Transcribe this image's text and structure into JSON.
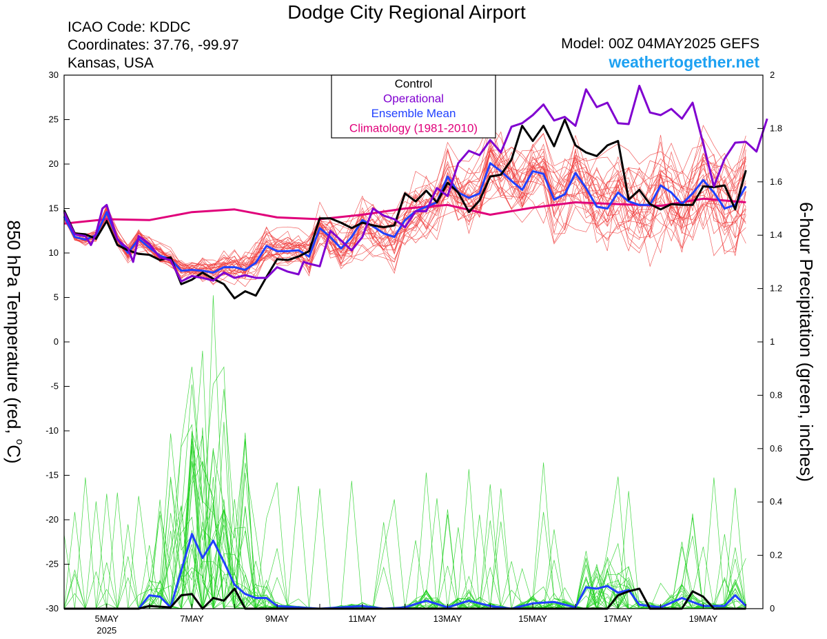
{
  "header": {
    "title": "Dodge City Regional Airport",
    "icao": "ICAO Code: KDDC",
    "coords": "Coordinates: 37.76, -99.97",
    "region": "Kansas, USA",
    "model": "Model: 00Z 04MAY2025 GEFS",
    "site": "weathertogether.net"
  },
  "chart_data": {
    "type": "line",
    "x_unit": "days since 00Z 04MAY2025 (6-hourly)",
    "xlim": [
      0,
      16
    ],
    "x_ticks": [
      {
        "x": 1,
        "label": "5MAY",
        "sub": "2025"
      },
      {
        "x": 3,
        "label": "7MAY"
      },
      {
        "x": 5,
        "label": "9MAY"
      },
      {
        "x": 7,
        "label": "11MAY"
      },
      {
        "x": 9,
        "label": "13MAY"
      },
      {
        "x": 11,
        "label": "15MAY"
      },
      {
        "x": 13,
        "label": "17MAY"
      },
      {
        "x": 15,
        "label": "19MAY"
      }
    ],
    "y_left": {
      "label": "850 hPa Temperature (red, °C)",
      "label_main": "850 hPa Temperature (red, ",
      "label_unit": "C)",
      "ylim": [
        -30,
        30
      ],
      "ticks": [
        30,
        25,
        20,
        15,
        10,
        5,
        0,
        -5,
        -10,
        -15,
        -20,
        -25,
        -30
      ]
    },
    "y_right": {
      "label": "6-hour Precipitation (green, inches)",
      "ylim": [
        0,
        2
      ],
      "ticks": [
        "2",
        "1.8",
        "1.6",
        "1.4",
        "1.2",
        "1",
        "0.8",
        "0.6",
        "0.4",
        "0.2",
        "0"
      ]
    },
    "legend": {
      "position": "top-center",
      "entries": [
        {
          "name": "Control",
          "color": "#000000"
        },
        {
          "name": "Operational",
          "color": "#8000d0"
        },
        {
          "name": "Ensemble Mean",
          "color": "#2040ff"
        },
        {
          "name": "Climatology (1981-2010)",
          "color": "#e0007a"
        }
      ]
    },
    "series": [
      {
        "name": "Operational",
        "axis": "temp",
        "color": "#8000d0",
        "points": [
          [
            0,
            14.6
          ],
          [
            0.25,
            12.1
          ],
          [
            0.5,
            11.9
          ],
          [
            0.63,
            10.9
          ],
          [
            0.75,
            12.2
          ],
          [
            0.9,
            15.0
          ],
          [
            1.0,
            15.4
          ],
          [
            1.25,
            11.5
          ],
          [
            1.5,
            10.5
          ],
          [
            1.62,
            9.0
          ],
          [
            1.75,
            11.9
          ],
          [
            2.0,
            11.0
          ],
          [
            2.25,
            9.5
          ],
          [
            2.5,
            9.2
          ],
          [
            2.75,
            6.8
          ],
          [
            3.0,
            7.4
          ],
          [
            3.25,
            7.2
          ],
          [
            3.5,
            6.9
          ],
          [
            3.75,
            7.8
          ],
          [
            4.0,
            7.2
          ],
          [
            4.25,
            7.5
          ],
          [
            4.5,
            7.2
          ],
          [
            4.75,
            7.2
          ],
          [
            5.0,
            8.4
          ],
          [
            5.25,
            7.9
          ],
          [
            5.5,
            7.6
          ],
          [
            5.62,
            9.0
          ],
          [
            5.75,
            8.8
          ],
          [
            6.0,
            8.5
          ],
          [
            6.25,
            12.5
          ],
          [
            6.5,
            11.4
          ],
          [
            6.75,
            10.3
          ],
          [
            7.0,
            11.8
          ],
          [
            7.25,
            15.0
          ],
          [
            7.5,
            14.2
          ],
          [
            7.75,
            13.8
          ],
          [
            8.0,
            12.9
          ],
          [
            8.25,
            14.7
          ],
          [
            8.5,
            14.7
          ],
          [
            8.75,
            17.3
          ],
          [
            9.0,
            16.4
          ],
          [
            9.25,
            20.1
          ],
          [
            9.5,
            21.5
          ],
          [
            9.75,
            21.0
          ],
          [
            10.0,
            22.7
          ],
          [
            10.25,
            21.3
          ],
          [
            10.5,
            24.2
          ],
          [
            10.75,
            24.6
          ],
          [
            11.0,
            25.5
          ],
          [
            11.25,
            26.7
          ],
          [
            11.5,
            24.9
          ],
          [
            11.75,
            25.3
          ],
          [
            12.0,
            24.3
          ],
          [
            12.25,
            28.4
          ],
          [
            12.5,
            26.4
          ],
          [
            12.75,
            26.9
          ],
          [
            13.0,
            24.6
          ],
          [
            13.25,
            24.5
          ],
          [
            13.5,
            28.8
          ],
          [
            13.75,
            25.8
          ],
          [
            14.0,
            25.5
          ],
          [
            14.25,
            26.2
          ],
          [
            14.5,
            25.1
          ],
          [
            14.75,
            26.9
          ],
          [
            15.0,
            22.3
          ],
          [
            15.25,
            17.5
          ],
          [
            15.5,
            20.6
          ],
          [
            15.75,
            22.4
          ],
          [
            16.0,
            22.5
          ],
          [
            16.25,
            21.4
          ],
          [
            16.5,
            25.1
          ]
        ]
      },
      {
        "name": "Control",
        "axis": "temp",
        "color": "#000000",
        "points": [
          [
            0,
            14.8
          ],
          [
            0.25,
            12.2
          ],
          [
            0.5,
            12.1
          ],
          [
            0.75,
            11.6
          ],
          [
            1.0,
            13.6
          ],
          [
            1.25,
            10.9
          ],
          [
            1.5,
            10.3
          ],
          [
            1.75,
            9.9
          ],
          [
            2.0,
            9.8
          ],
          [
            2.25,
            9.2
          ],
          [
            2.5,
            9.5
          ],
          [
            2.75,
            6.5
          ],
          [
            3.0,
            7.0
          ],
          [
            3.25,
            7.8
          ],
          [
            3.5,
            7.1
          ],
          [
            3.75,
            6.5
          ],
          [
            4.0,
            4.9
          ],
          [
            4.25,
            5.7
          ],
          [
            4.5,
            5.2
          ],
          [
            4.75,
            7.3
          ],
          [
            5.0,
            9.3
          ],
          [
            5.25,
            9.2
          ],
          [
            5.5,
            9.6
          ],
          [
            5.75,
            10.2
          ],
          [
            6.0,
            13.9
          ],
          [
            6.25,
            13.9
          ],
          [
            6.5,
            13.4
          ],
          [
            6.75,
            12.8
          ],
          [
            7.0,
            13.4
          ],
          [
            7.25,
            13.1
          ],
          [
            7.5,
            12.9
          ],
          [
            7.75,
            13.1
          ],
          [
            8.0,
            16.7
          ],
          [
            8.25,
            15.8
          ],
          [
            8.5,
            17.0
          ],
          [
            8.75,
            15.7
          ],
          [
            9.0,
            17.9
          ],
          [
            9.25,
            16.8
          ],
          [
            9.5,
            14.6
          ],
          [
            9.75,
            15.9
          ],
          [
            10.0,
            18.6
          ],
          [
            10.25,
            18.8
          ],
          [
            10.5,
            20.5
          ],
          [
            10.75,
            24.3
          ],
          [
            11.0,
            22.6
          ],
          [
            11.25,
            24.3
          ],
          [
            11.5,
            22.0
          ],
          [
            11.75,
            25.0
          ],
          [
            12.0,
            22.1
          ],
          [
            12.25,
            21.3
          ],
          [
            12.5,
            20.9
          ],
          [
            12.75,
            22.1
          ],
          [
            13.0,
            22.6
          ],
          [
            13.25,
            16.0
          ],
          [
            13.5,
            17.1
          ],
          [
            13.75,
            15.5
          ],
          [
            14.0,
            14.9
          ],
          [
            14.25,
            15.5
          ],
          [
            14.5,
            15.4
          ],
          [
            14.75,
            15.4
          ],
          [
            15.0,
            17.5
          ],
          [
            15.25,
            17.4
          ],
          [
            15.5,
            17.6
          ],
          [
            15.75,
            14.9
          ],
          [
            16.0,
            19.3
          ]
        ]
      },
      {
        "name": "Ensemble Mean",
        "axis": "temp",
        "color": "#2040ff",
        "points": [
          [
            0,
            14.1
          ],
          [
            0.25,
            11.8
          ],
          [
            0.5,
            11.5
          ],
          [
            0.75,
            12.0
          ],
          [
            1.0,
            14.6
          ],
          [
            1.25,
            11.6
          ],
          [
            1.5,
            10.0
          ],
          [
            1.75,
            11.6
          ],
          [
            2.0,
            10.6
          ],
          [
            2.25,
            9.7
          ],
          [
            2.5,
            9.3
          ],
          [
            2.75,
            8.0
          ],
          [
            3.0,
            8.1
          ],
          [
            3.25,
            8.0
          ],
          [
            3.5,
            7.8
          ],
          [
            3.75,
            8.4
          ],
          [
            4.0,
            8.4
          ],
          [
            4.25,
            8.1
          ],
          [
            4.5,
            8.9
          ],
          [
            4.75,
            10.8
          ],
          [
            5.0,
            10.2
          ],
          [
            5.25,
            10.2
          ],
          [
            5.5,
            10.3
          ],
          [
            5.75,
            9.6
          ],
          [
            6.0,
            12.8
          ],
          [
            6.25,
            11.8
          ],
          [
            6.5,
            10.5
          ],
          [
            6.75,
            11.8
          ],
          [
            7.0,
            13.7
          ],
          [
            7.25,
            13.0
          ],
          [
            7.5,
            12.2
          ],
          [
            7.75,
            11.8
          ],
          [
            8.0,
            13.7
          ],
          [
            8.25,
            14.7
          ],
          [
            8.5,
            15.2
          ],
          [
            8.75,
            15.7
          ],
          [
            9.0,
            18.6
          ],
          [
            9.25,
            16.8
          ],
          [
            9.5,
            16.2
          ],
          [
            9.75,
            16.7
          ],
          [
            10.0,
            20.1
          ],
          [
            10.25,
            19.2
          ],
          [
            10.5,
            18.1
          ],
          [
            10.75,
            17.1
          ],
          [
            11.0,
            19.2
          ],
          [
            11.25,
            18.9
          ],
          [
            11.5,
            16.0
          ],
          [
            11.75,
            16.6
          ],
          [
            12.0,
            19.0
          ],
          [
            12.25,
            17.3
          ],
          [
            12.5,
            15.2
          ],
          [
            12.75,
            15.0
          ],
          [
            13.0,
            16.8
          ],
          [
            13.25,
            15.8
          ],
          [
            13.5,
            15.4
          ],
          [
            13.75,
            15.4
          ],
          [
            14.0,
            17.6
          ],
          [
            14.25,
            16.8
          ],
          [
            14.5,
            15.5
          ],
          [
            14.75,
            16.7
          ],
          [
            15.0,
            18.2
          ],
          [
            15.25,
            16.8
          ],
          [
            15.5,
            15.0
          ],
          [
            15.75,
            15.4
          ],
          [
            16.0,
            17.5
          ]
        ]
      },
      {
        "name": "Climatology (1981-2010)",
        "axis": "temp",
        "color": "#e0007a",
        "points": [
          [
            0,
            13.3
          ],
          [
            1,
            13.8
          ],
          [
            2,
            13.7
          ],
          [
            3,
            14.6
          ],
          [
            4,
            14.9
          ],
          [
            5,
            14.0
          ],
          [
            6,
            13.8
          ],
          [
            7,
            14.3
          ],
          [
            8,
            15.0
          ],
          [
            9,
            15.4
          ],
          [
            10,
            14.3
          ],
          [
            11,
            15.1
          ],
          [
            12,
            15.7
          ],
          [
            13,
            15.5
          ],
          [
            14,
            15.3
          ],
          [
            15,
            16.1
          ],
          [
            16,
            15.7
          ]
        ]
      },
      {
        "name": "Ensemble Mean",
        "axis": "precip",
        "color": "#2040ff",
        "points": [
          [
            0,
            0
          ],
          [
            1,
            0
          ],
          [
            1.75,
            0
          ],
          [
            2.0,
            0.05
          ],
          [
            2.25,
            0.045
          ],
          [
            2.5,
            0.005
          ],
          [
            3.0,
            0.28
          ],
          [
            3.25,
            0.19
          ],
          [
            3.5,
            0.255
          ],
          [
            3.75,
            0.175
          ],
          [
            4.0,
            0.09
          ],
          [
            4.25,
            0.055
          ],
          [
            4.5,
            0.04
          ],
          [
            4.75,
            0.04
          ],
          [
            5.0,
            0.01
          ],
          [
            5.5,
            0.005
          ],
          [
            6,
            0
          ],
          [
            6.5,
            0.005
          ],
          [
            7,
            0.01
          ],
          [
            7.5,
            0
          ],
          [
            8,
            0.005
          ],
          [
            8.5,
            0.03
          ],
          [
            9,
            0.005
          ],
          [
            9.5,
            0.03
          ],
          [
            10,
            0.01
          ],
          [
            10.5,
            0
          ],
          [
            11,
            0.02
          ],
          [
            11.5,
            0.025
          ],
          [
            12,
            0.005
          ],
          [
            12.25,
            0.08
          ],
          [
            12.5,
            0.075
          ],
          [
            12.75,
            0.085
          ],
          [
            13.0,
            0.06
          ],
          [
            13.25,
            0.07
          ],
          [
            13.5,
            0.015
          ],
          [
            14,
            0.005
          ],
          [
            14.5,
            0.04
          ],
          [
            15,
            0.01
          ],
          [
            15.5,
            0.01
          ],
          [
            15.75,
            0.05
          ],
          [
            16,
            0.01
          ]
        ]
      },
      {
        "name": "Control",
        "axis": "precip",
        "color": "#000000",
        "points": [
          [
            0,
            0
          ],
          [
            1.75,
            0
          ],
          [
            2.0,
            0.01
          ],
          [
            2.5,
            0.005
          ],
          [
            2.75,
            0.05
          ],
          [
            3.0,
            0.055
          ],
          [
            3.25,
            0
          ],
          [
            3.5,
            0.04
          ],
          [
            3.75,
            0.03
          ],
          [
            4.0,
            0.075
          ],
          [
            4.25,
            0
          ],
          [
            7,
            0
          ],
          [
            12.75,
            0
          ],
          [
            13.0,
            0.05
          ],
          [
            13.25,
            0.065
          ],
          [
            13.5,
            0.075
          ],
          [
            13.75,
            0
          ],
          [
            14.5,
            0
          ],
          [
            14.75,
            0.065
          ],
          [
            15.0,
            0.045
          ],
          [
            15.25,
            0.0
          ],
          [
            16,
            0
          ]
        ]
      }
    ],
    "ensemble_members": {
      "temp_count": 30,
      "precip_count": 30
    }
  }
}
